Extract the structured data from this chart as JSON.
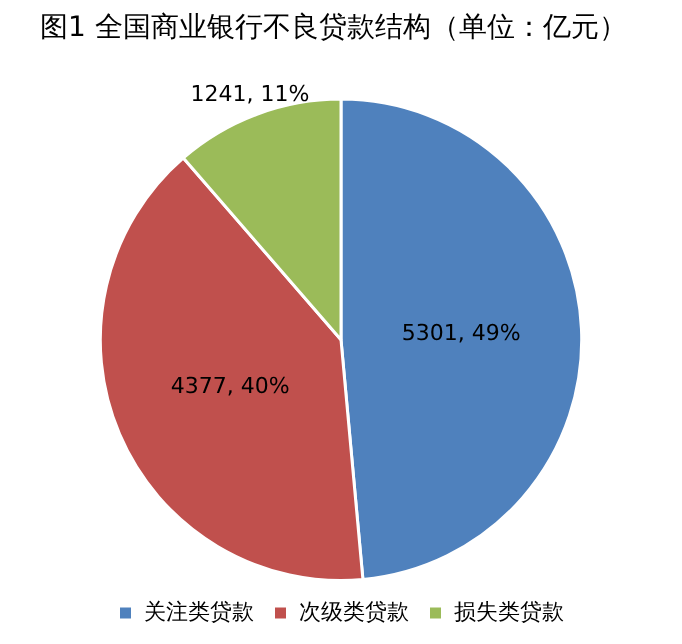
{
  "chart_data": {
    "type": "pie",
    "title": "图1 全国商业银行不良贷款结构（单位：亿元）",
    "categories": [
      "关注类贷款",
      "次级类贷款",
      "损失类贷款"
    ],
    "values": [
      5301,
      4377,
      1241
    ],
    "colors": [
      "#4f81bd",
      "#c0504d",
      "#9bbb59"
    ],
    "value_labels": [
      "5301, 49%",
      "4377, 40%",
      "1241, 11%"
    ],
    "legend": "bottom"
  }
}
